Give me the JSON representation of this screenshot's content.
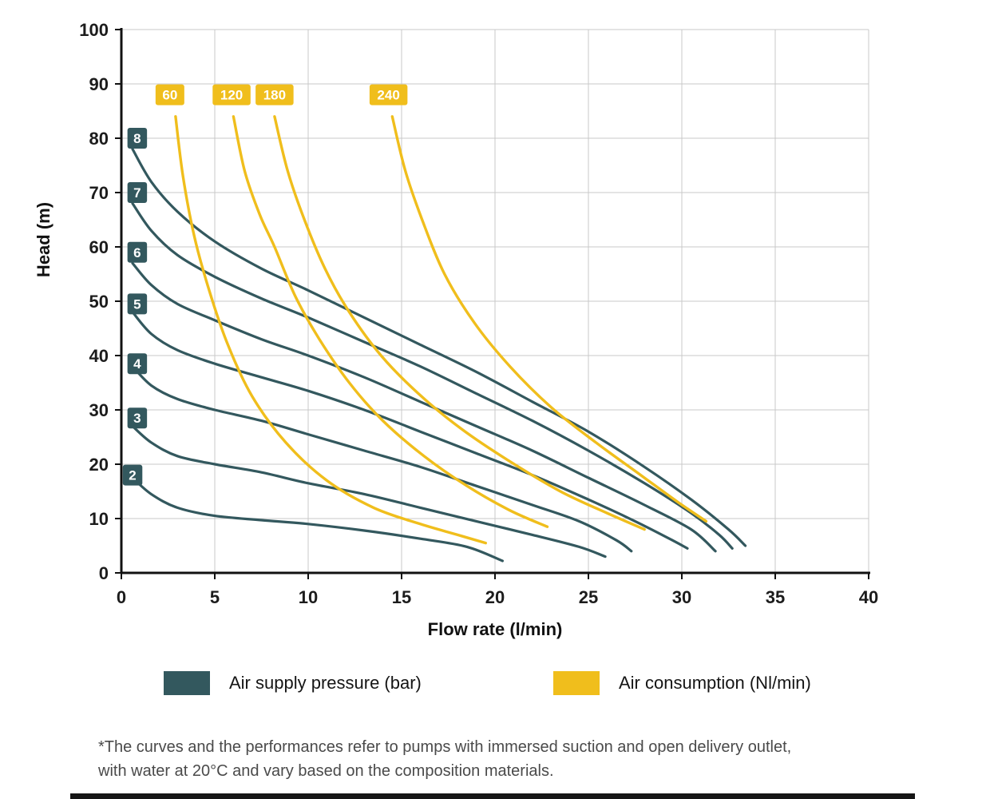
{
  "chart_data": {
    "type": "line",
    "title": "",
    "xlabel": "Flow rate (l/min)",
    "ylabel": "Head (m)",
    "xlim": [
      0,
      40
    ],
    "ylim": [
      0,
      100
    ],
    "xticks": [
      0,
      5,
      10,
      15,
      20,
      25,
      30,
      35,
      40
    ],
    "yticks": [
      0,
      10,
      20,
      30,
      40,
      50,
      60,
      70,
      80,
      90,
      100
    ],
    "grid": true,
    "legend_position": "bottom",
    "colors": {
      "pressure": "#33585e",
      "consumption": "#f0be1c",
      "grid": "#c9c9c9",
      "axis": "#111111"
    },
    "pressure_series": [
      {
        "label": "8",
        "label_pos": [
          0.85,
          80
        ],
        "points": [
          [
            0.6,
            78
          ],
          [
            1.6,
            72
          ],
          [
            3,
            66.5
          ],
          [
            5,
            61
          ],
          [
            7.5,
            56
          ],
          [
            10,
            52
          ],
          [
            13,
            47
          ],
          [
            16,
            42
          ],
          [
            19,
            37
          ],
          [
            22,
            31.5
          ],
          [
            25,
            26
          ],
          [
            28,
            19.5
          ],
          [
            30.5,
            13.5
          ],
          [
            32.5,
            8
          ],
          [
            33.4,
            5
          ]
        ]
      },
      {
        "label": "7",
        "label_pos": [
          0.85,
          70
        ],
        "points": [
          [
            0.6,
            68
          ],
          [
            1.6,
            63
          ],
          [
            3,
            58.5
          ],
          [
            5,
            54.5
          ],
          [
            7.5,
            50.5
          ],
          [
            10,
            47
          ],
          [
            13,
            42.5
          ],
          [
            16,
            38
          ],
          [
            19,
            33
          ],
          [
            22,
            28
          ],
          [
            25,
            22.5
          ],
          [
            28,
            16.5
          ],
          [
            30.5,
            11
          ],
          [
            32,
            7
          ],
          [
            32.7,
            4.5
          ]
        ]
      },
      {
        "label": "6",
        "label_pos": [
          0.85,
          59
        ],
        "points": [
          [
            0.6,
            57
          ],
          [
            1.6,
            53
          ],
          [
            3,
            49.5
          ],
          [
            5,
            46.5
          ],
          [
            7.5,
            43
          ],
          [
            10,
            40
          ],
          [
            13,
            36
          ],
          [
            16,
            31.5
          ],
          [
            19,
            27
          ],
          [
            22,
            22.5
          ],
          [
            25,
            17.5
          ],
          [
            28,
            12.5
          ],
          [
            30.5,
            8
          ],
          [
            31.8,
            4
          ]
        ]
      },
      {
        "label": "5",
        "label_pos": [
          0.85,
          49.5
        ],
        "points": [
          [
            0.6,
            48
          ],
          [
            1.6,
            44
          ],
          [
            3,
            41
          ],
          [
            5,
            38.5
          ],
          [
            7.5,
            36
          ],
          [
            10,
            33.5
          ],
          [
            13,
            30
          ],
          [
            16,
            26
          ],
          [
            19,
            22
          ],
          [
            22,
            18
          ],
          [
            25,
            13.5
          ],
          [
            27.5,
            9.5
          ],
          [
            29.5,
            6
          ],
          [
            30.3,
            4.5
          ]
        ]
      },
      {
        "label": "4",
        "label_pos": [
          0.85,
          38.5
        ],
        "points": [
          [
            0.6,
            38
          ],
          [
            1.6,
            34.5
          ],
          [
            3,
            32
          ],
          [
            5,
            30
          ],
          [
            7.5,
            28
          ],
          [
            10,
            25.5
          ],
          [
            13,
            22.5
          ],
          [
            16,
            19.5
          ],
          [
            19,
            16
          ],
          [
            22,
            12.5
          ],
          [
            24.5,
            9.5
          ],
          [
            26.5,
            6
          ],
          [
            27.3,
            4
          ]
        ]
      },
      {
        "label": "3",
        "label_pos": [
          0.85,
          28.5
        ],
        "points": [
          [
            0.6,
            27
          ],
          [
            1.6,
            24
          ],
          [
            3,
            21.5
          ],
          [
            5,
            20
          ],
          [
            7.5,
            18.5
          ],
          [
            10,
            16.5
          ],
          [
            13,
            14.5
          ],
          [
            16,
            12
          ],
          [
            19,
            9.5
          ],
          [
            22,
            7
          ],
          [
            24.5,
            4.8
          ],
          [
            25.9,
            3
          ]
        ]
      },
      {
        "label": "2",
        "label_pos": [
          0.6,
          18
        ],
        "points": [
          [
            0.6,
            17.5
          ],
          [
            1.6,
            14.5
          ],
          [
            3,
            12
          ],
          [
            5,
            10.5
          ],
          [
            7.5,
            9.7
          ],
          [
            10,
            9
          ],
          [
            13,
            7.8
          ],
          [
            16,
            6.3
          ],
          [
            18.5,
            4.8
          ],
          [
            20.4,
            2.2
          ]
        ]
      }
    ],
    "consumption_series": [
      {
        "label": "60",
        "label_pos": [
          2.6,
          88
        ],
        "points": [
          [
            2.9,
            84
          ],
          [
            3.3,
            73
          ],
          [
            3.9,
            62
          ],
          [
            4.7,
            52
          ],
          [
            5.7,
            42
          ],
          [
            7,
            32.5
          ],
          [
            8.8,
            24
          ],
          [
            11,
            17
          ],
          [
            13.5,
            12
          ],
          [
            16,
            9
          ],
          [
            18,
            7
          ],
          [
            19.5,
            5.5
          ]
        ]
      },
      {
        "label": "120",
        "label_pos": [
          5.9,
          88
        ],
        "points": [
          [
            6.0,
            84
          ],
          [
            6.6,
            74
          ],
          [
            7.4,
            66
          ],
          [
            8.2,
            60
          ],
          [
            9.3,
            51
          ],
          [
            10.6,
            43
          ],
          [
            12.2,
            35
          ],
          [
            14,
            28
          ],
          [
            16.2,
            21.5
          ],
          [
            18.5,
            16
          ],
          [
            20.8,
            11.5
          ],
          [
            22.8,
            8.5
          ]
        ]
      },
      {
        "label": "180",
        "label_pos": [
          8.2,
          88
        ],
        "points": [
          [
            8.2,
            84
          ],
          [
            8.9,
            74
          ],
          [
            9.8,
            65
          ],
          [
            10.9,
            56
          ],
          [
            12.2,
            48
          ],
          [
            13.9,
            40
          ],
          [
            15.9,
            33
          ],
          [
            18.2,
            26.5
          ],
          [
            20.8,
            20.5
          ],
          [
            23.5,
            15
          ],
          [
            26,
            11
          ],
          [
            28,
            8
          ]
        ]
      },
      {
        "label": "240",
        "label_pos": [
          14.3,
          88
        ],
        "points": [
          [
            14.5,
            84
          ],
          [
            15.2,
            74
          ],
          [
            16.1,
            65
          ],
          [
            17.3,
            55
          ],
          [
            18.9,
            46
          ],
          [
            20.8,
            38
          ],
          [
            23,
            30.5
          ],
          [
            25.4,
            24
          ],
          [
            27.8,
            18
          ],
          [
            29.8,
            13
          ],
          [
            31.3,
            9.5
          ]
        ]
      }
    ]
  },
  "legend": {
    "pressure_label": "Air supply pressure (bar)",
    "consumption_label": "Air consumption (Nl/min)"
  },
  "footnote": {
    "line1": "*The curves and the performances refer to pumps with immersed suction and open delivery outlet,",
    "line2": "with water at 20°C and vary based on the composition materials."
  }
}
